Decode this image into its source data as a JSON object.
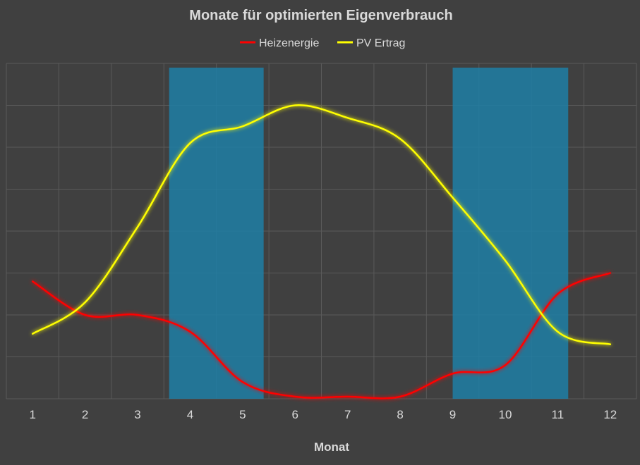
{
  "chart_data": {
    "type": "line",
    "title": "Monate für optimierten Eigenverbrauch",
    "xlabel": "Monat",
    "ylabel": "",
    "x": [
      1,
      2,
      3,
      4,
      5,
      6,
      7,
      8,
      9,
      10,
      11,
      12
    ],
    "xlim": [
      0.5,
      12.5
    ],
    "ylim": [
      0,
      8
    ],
    "grid": true,
    "legend": "top",
    "series": [
      {
        "name": "Heizenergie",
        "color": "#ff0000",
        "values": [
          2.8,
          2.0,
          2.0,
          1.6,
          0.4,
          0.05,
          0.05,
          0.05,
          0.6,
          0.8,
          2.5,
          3.0
        ]
      },
      {
        "name": "PV Ertrag",
        "color": "#ffff00",
        "values": [
          1.55,
          2.3,
          4.1,
          6.1,
          6.5,
          7.0,
          6.7,
          6.2,
          4.8,
          3.3,
          1.6,
          1.3
        ]
      }
    ],
    "highlight_ranges": [
      {
        "from": 3.6,
        "to": 5.4,
        "color": "#1f7fa6"
      },
      {
        "from": 9.0,
        "to": 11.2,
        "color": "#1f7fa6"
      }
    ]
  }
}
